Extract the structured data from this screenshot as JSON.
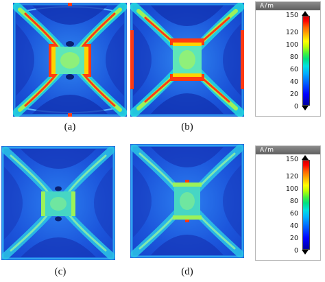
{
  "panels": [
    {
      "caption": "(a)",
      "intensity": "high",
      "orientation": "horizontal"
    },
    {
      "caption": "(b)",
      "intensity": "high",
      "orientation": "vertical"
    },
    {
      "caption": "(c)",
      "intensity": "low",
      "orientation": "horizontal"
    },
    {
      "caption": "(d)",
      "intensity": "low",
      "orientation": "vertical"
    }
  ],
  "colorbars": [
    {
      "unit": "A/m",
      "ticks": [
        "150",
        "120",
        "100",
        "80",
        "60",
        "40",
        "20",
        "0"
      ],
      "max": 150,
      "min": 0
    },
    {
      "unit": "A/m",
      "ticks": [
        "150",
        "120",
        "100",
        "80",
        "60",
        "40",
        "20",
        "0"
      ],
      "max": 150,
      "min": 0
    }
  ],
  "colors": {
    "background_field": "#1f4fd8",
    "low": "#0a2fb8",
    "mid": "#23d3e0",
    "warm": "#9cf25a",
    "hot": "#ff3a12"
  }
}
